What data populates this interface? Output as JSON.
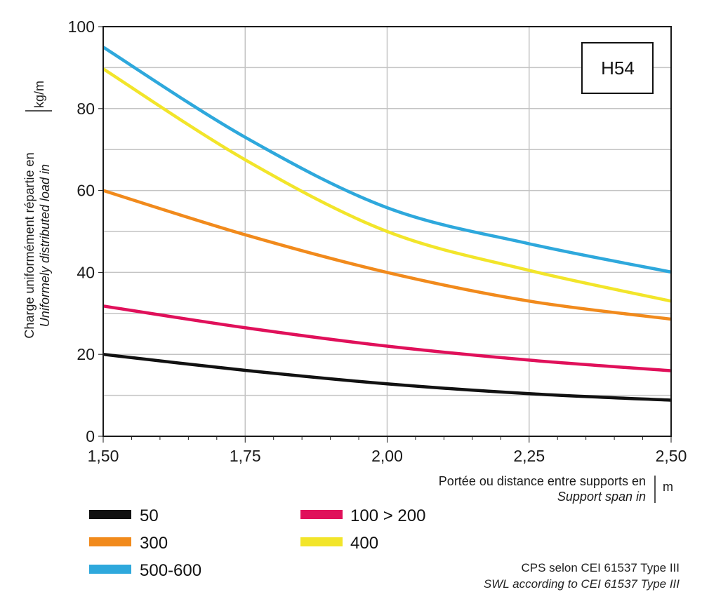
{
  "chart_data": {
    "type": "line",
    "badge": "H54",
    "ylabel_line1": "Charge uniformément répartie en",
    "ylabel_line2": "Uniformely distributed load in",
    "yunit": "kg/m",
    "xlabel_line1": "Portée ou distance entre supports en",
    "xlabel_line2": "Support span in",
    "xunit": "m",
    "xlim": [
      1.5,
      2.5
    ],
    "ylim": [
      0,
      100
    ],
    "xticks": [
      {
        "value": 1.5,
        "label": "1,50"
      },
      {
        "value": 1.75,
        "label": "1,75"
      },
      {
        "value": 2.0,
        "label": "2,00"
      },
      {
        "value": 2.25,
        "label": "2,25"
      },
      {
        "value": 2.5,
        "label": "2,50"
      }
    ],
    "yticks": [
      {
        "value": 0,
        "label": "0"
      },
      {
        "value": 20,
        "label": "20"
      },
      {
        "value": 40,
        "label": "40"
      },
      {
        "value": 60,
        "label": "60"
      },
      {
        "value": 80,
        "label": "80"
      },
      {
        "value": 100,
        "label": "100"
      }
    ],
    "grid": true,
    "x": [
      1.5,
      1.75,
      2.0,
      2.25,
      2.5
    ],
    "series": [
      {
        "name": "50",
        "color": "#111111",
        "values": [
          20,
          16.1,
          12.8,
          10.4,
          8.8
        ]
      },
      {
        "name": "100 > 200",
        "color": "#e0105a",
        "values": [
          31.8,
          26.5,
          22.0,
          18.6,
          16.0
        ]
      },
      {
        "name": "300",
        "color": "#f18a1c",
        "values": [
          60,
          49.2,
          40.0,
          33.0,
          28.6
        ]
      },
      {
        "name": "400",
        "color": "#f2e52a",
        "values": [
          89.7,
          67.5,
          50.0,
          40.5,
          33.0
        ]
      },
      {
        "name": "500-600",
        "color": "#2ea8dc",
        "values": [
          95,
          73.0,
          55.8,
          47.0,
          40.1
        ]
      }
    ],
    "legend_order": [
      "50",
      "100 > 200",
      "300",
      "400",
      "500-600"
    ],
    "footnote_line1": "CPS selon CEI 61537 Type III",
    "footnote_line2": "SWL according to CEI 61537 Type III"
  }
}
